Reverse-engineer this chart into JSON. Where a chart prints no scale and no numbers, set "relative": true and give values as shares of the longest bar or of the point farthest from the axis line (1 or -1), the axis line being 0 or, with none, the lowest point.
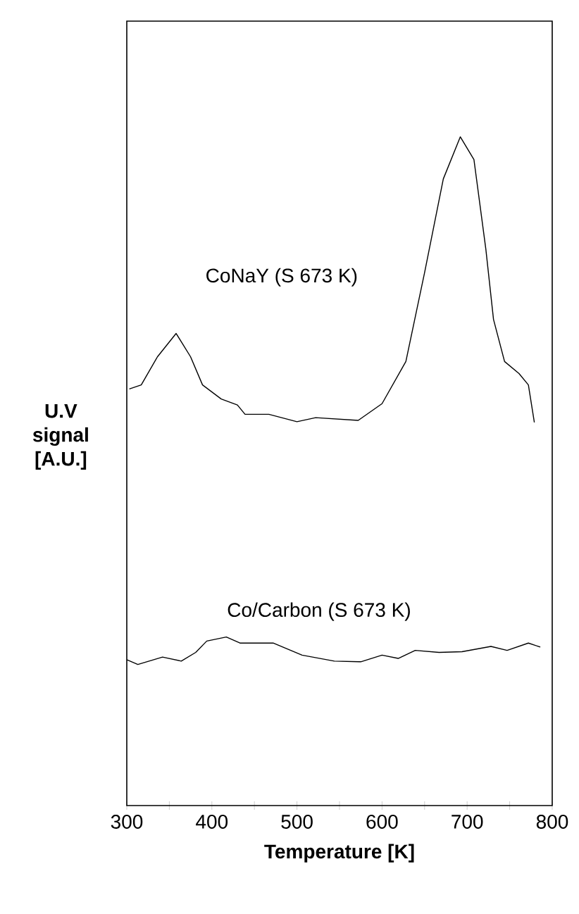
{
  "chart_data": {
    "type": "line",
    "relative": true,
    "xlabel": "Temperature [K]",
    "ylabel": "U.V signal [A.U.]",
    "xlim": [
      300,
      800
    ],
    "xticks": [
      300,
      {
        "value": 350,
        "label": null
      },
      400,
      {
        "value": 450,
        "label": null
      },
      500,
      {
        "value": 550,
        "label": null
      },
      600,
      {
        "value": 650,
        "label": null
      },
      700,
      {
        "value": 750,
        "label": null
      },
      800
    ],
    "grid": false,
    "tick_labels": "x",
    "marker": "none",
    "line_style": "solid",
    "series": [
      {
        "name": "CoNaY (S 673 K)",
        "color": "#000000",
        "x": [
          303,
          317,
          336,
          358,
          375,
          389,
          411,
          430,
          439,
          467,
          500,
          522,
          572,
          600,
          628,
          650,
          672,
          692,
          708,
          722,
          731,
          744,
          761,
          772,
          779
        ],
        "values": [
          0.623,
          0.629,
          0.671,
          0.706,
          0.671,
          0.629,
          0.608,
          0.599,
          0.585,
          0.585,
          0.574,
          0.58,
          0.576,
          0.601,
          0.664,
          0.797,
          0.937,
          1.0,
          0.966,
          0.832,
          0.727,
          0.664,
          0.646,
          0.629,
          0.573
        ]
      },
      {
        "name": "Co/Carbon (S 673 K)",
        "color": "#000000",
        "x": [
          300,
          313,
          342,
          364,
          381,
          394,
          417,
          433,
          472,
          506,
          544,
          575,
          600,
          619,
          639,
          667,
          694,
          728,
          747,
          772,
          786
        ],
        "values": [
          0.218,
          0.211,
          0.222,
          0.216,
          0.229,
          0.246,
          0.252,
          0.243,
          0.243,
          0.225,
          0.216,
          0.215,
          0.225,
          0.22,
          0.232,
          0.229,
          0.23,
          0.238,
          0.232,
          0.243,
          0.237
        ]
      }
    ]
  }
}
